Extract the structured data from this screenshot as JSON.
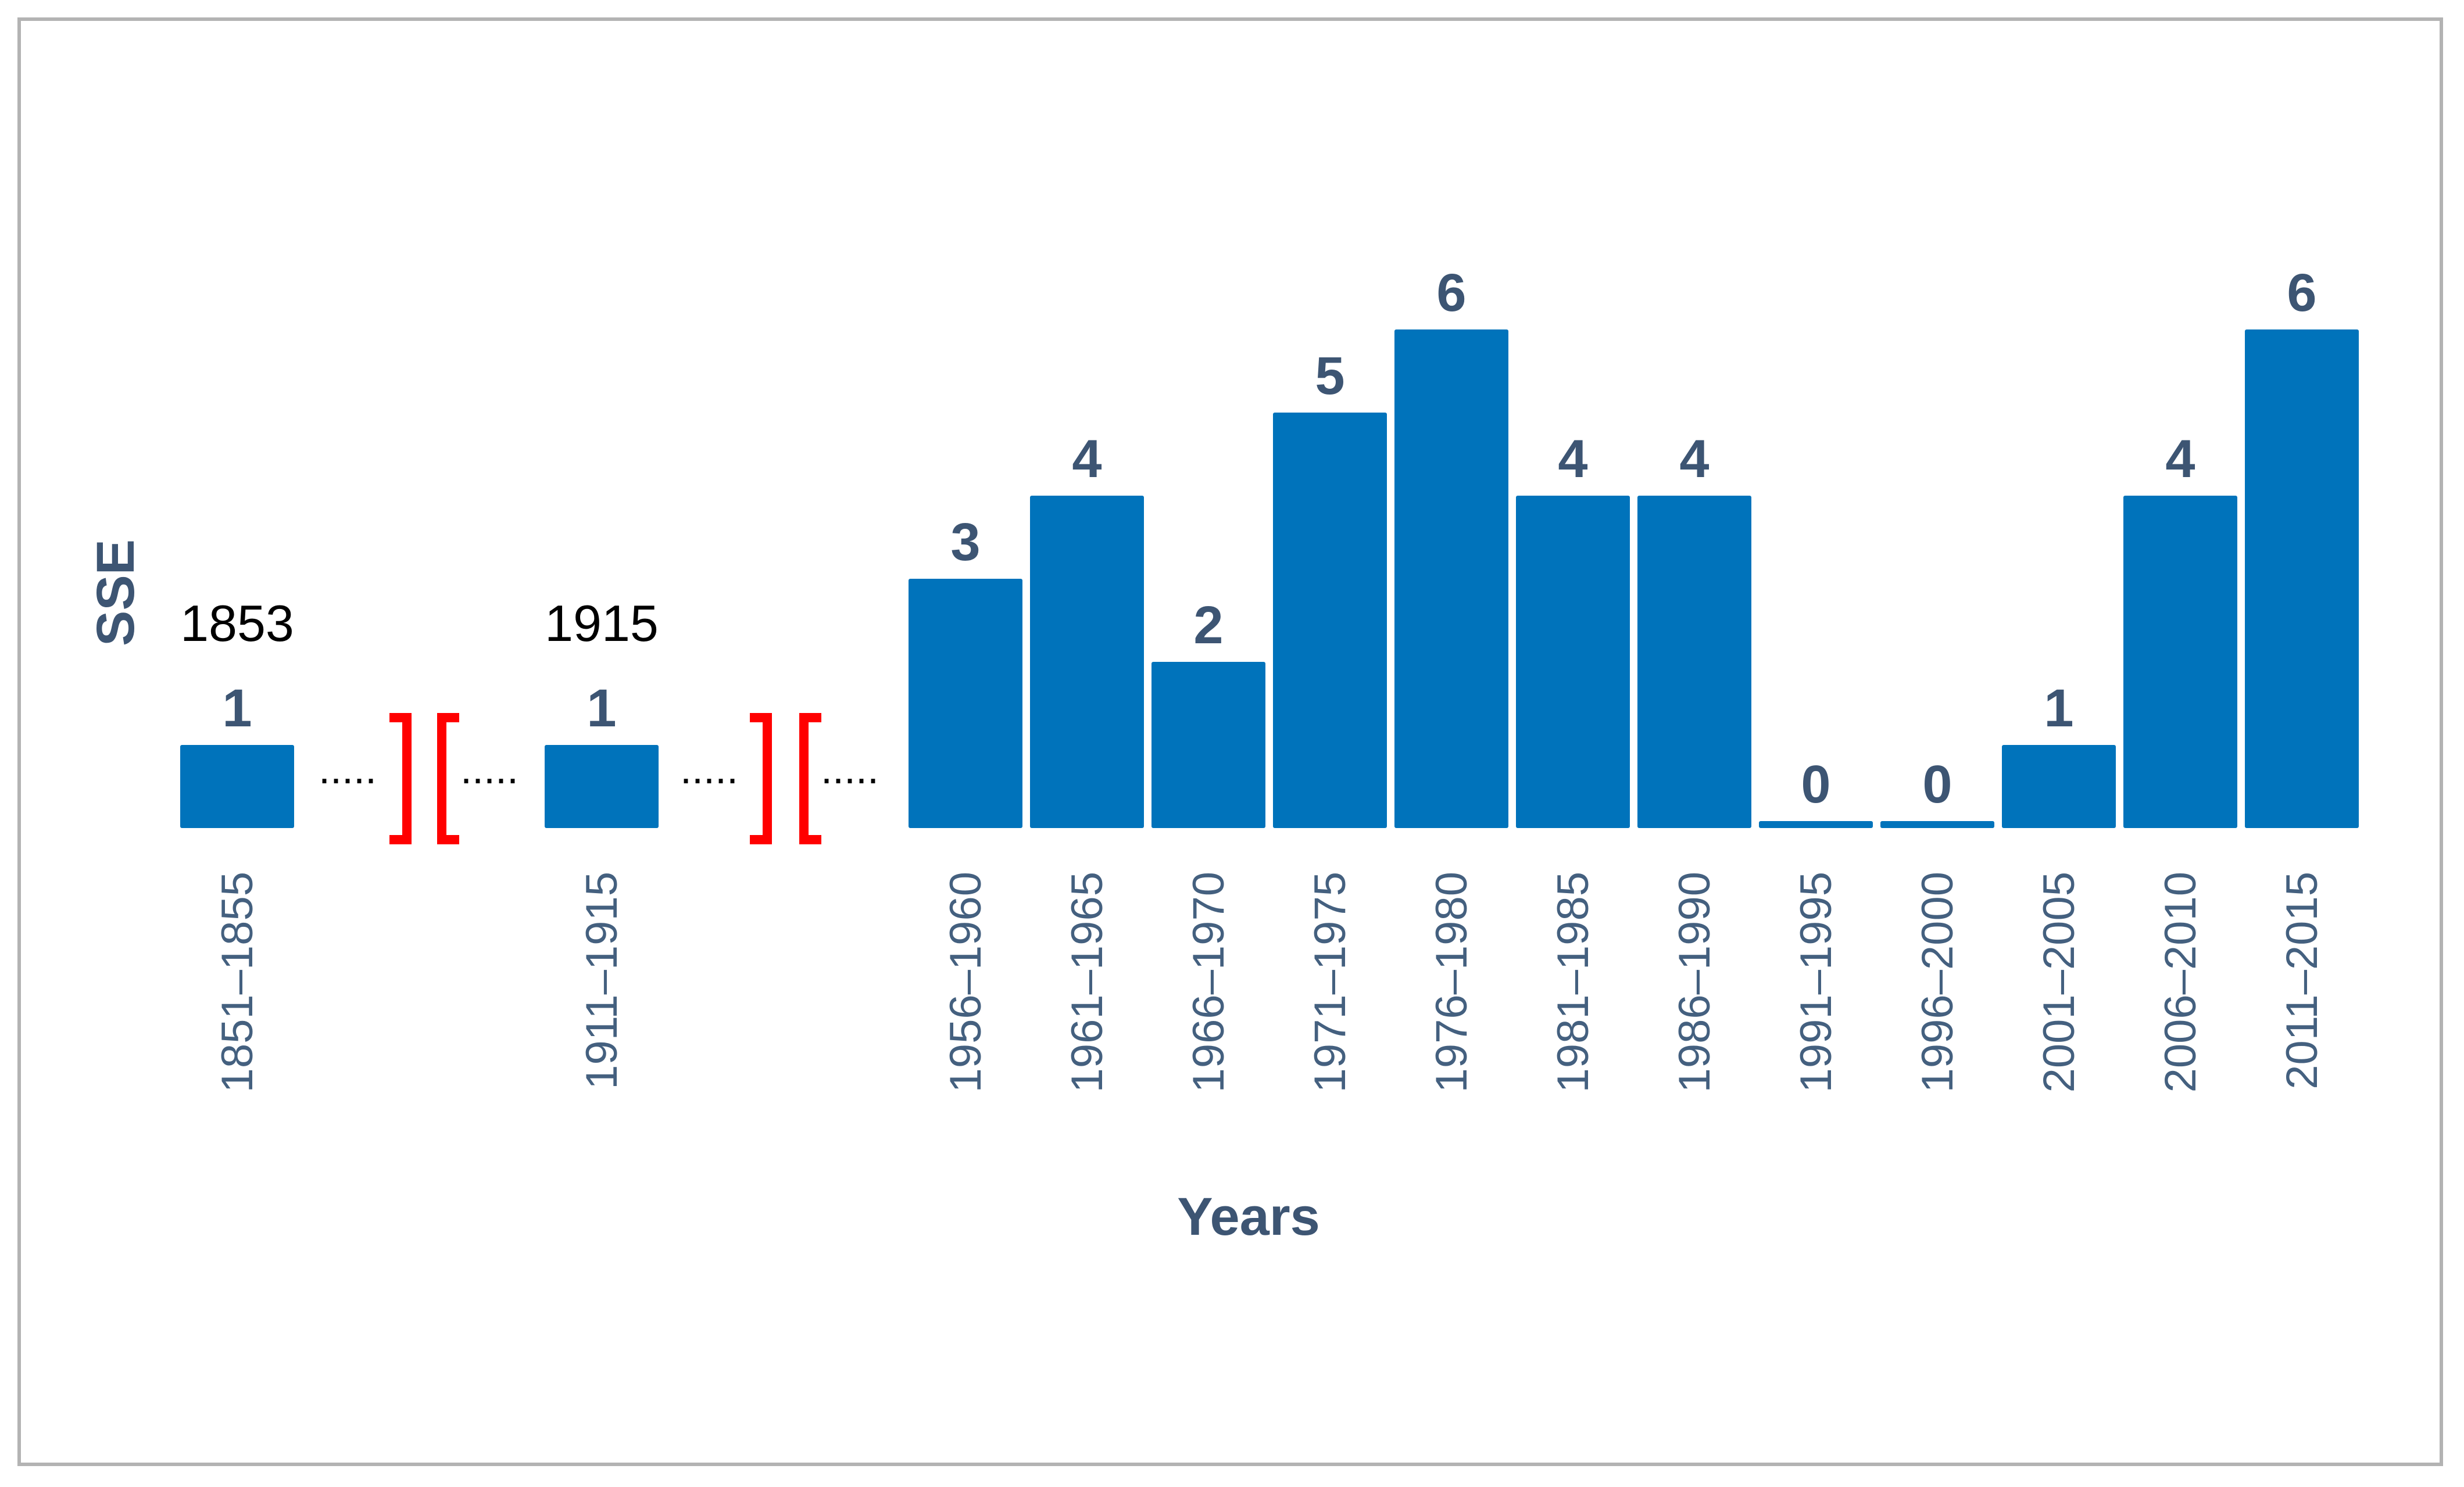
{
  "chart_data": {
    "type": "bar",
    "title": "",
    "xlabel": "Years",
    "ylabel": "SSE",
    "ylim": [
      0,
      6
    ],
    "grid": false,
    "legend": "none",
    "bar_color": "#0073bb",
    "break_color": "#ff0000",
    "categories": [
      "1851–1855",
      "1911–1915",
      "1956–1960",
      "1961–1965",
      "1966–1970",
      "1971–1975",
      "1976–1980",
      "1981–1985",
      "1986–1990",
      "1991–1995",
      "1996–2000",
      "2001–2005",
      "2006–2010",
      "2011–2015"
    ],
    "values": [
      1,
      1,
      3,
      4,
      2,
      5,
      6,
      4,
      4,
      0,
      0,
      1,
      4,
      6
    ],
    "value_labels": [
      "1",
      "1",
      "3",
      "4",
      "2",
      "5",
      "6",
      "4",
      "4",
      "0",
      "0",
      "1",
      "4",
      "6"
    ],
    "annotations": [
      {
        "category": "1851–1855",
        "text": "1853"
      },
      {
        "category": "1911–1915",
        "text": "1915"
      }
    ],
    "break_dots": "....."
  }
}
